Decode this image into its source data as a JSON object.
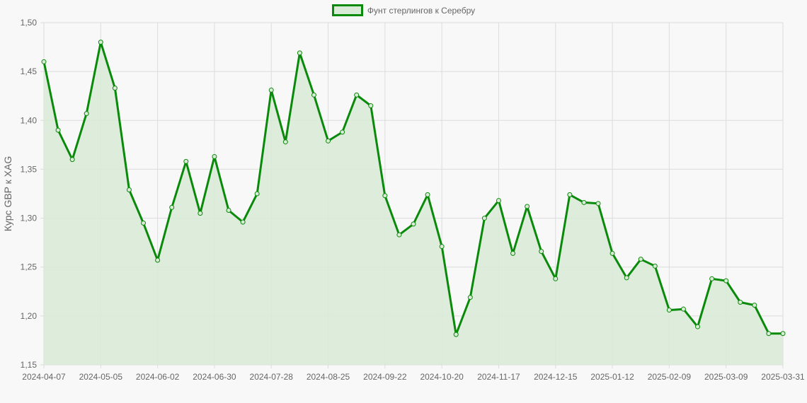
{
  "chart_data": {
    "type": "line",
    "title": "",
    "legend": {
      "position": "top",
      "entries": [
        "Фунт стерлингов к Серебру"
      ]
    },
    "xlabel": "",
    "ylabel": "Курс GBP к XAG",
    "ylim": [
      1.15,
      1.5
    ],
    "yticks": [
      "1,15",
      "1,20",
      "1,25",
      "1,30",
      "1,35",
      "1,40",
      "1,45",
      "1,50"
    ],
    "grid": true,
    "xtick_labels": [
      "2024-04-07",
      "2024-05-05",
      "2024-06-02",
      "2024-06-30",
      "2024-07-28",
      "2024-08-25",
      "2024-09-22",
      "2024-10-20",
      "2024-11-17",
      "2024-12-15",
      "2025-01-12",
      "2025-02-09",
      "2025-03-09",
      "2025-03-31"
    ],
    "x": [
      "2024-04-07",
      "2024-04-14",
      "2024-04-21",
      "2024-04-28",
      "2024-05-05",
      "2024-05-12",
      "2024-05-19",
      "2024-05-26",
      "2024-06-02",
      "2024-06-09",
      "2024-06-16",
      "2024-06-23",
      "2024-06-30",
      "2024-07-07",
      "2024-07-14",
      "2024-07-21",
      "2024-07-28",
      "2024-08-04",
      "2024-08-11",
      "2024-08-18",
      "2024-08-25",
      "2024-09-01",
      "2024-09-08",
      "2024-09-15",
      "2024-09-22",
      "2024-09-29",
      "2024-10-06",
      "2024-10-13",
      "2024-10-20",
      "2024-10-27",
      "2024-11-03",
      "2024-11-10",
      "2024-11-17",
      "2024-11-24",
      "2024-12-01",
      "2024-12-08",
      "2024-12-15",
      "2024-12-22",
      "2024-12-29",
      "2025-01-05",
      "2025-01-12",
      "2025-01-19",
      "2025-01-26",
      "2025-02-02",
      "2025-02-09",
      "2025-02-16",
      "2025-02-23",
      "2025-03-02",
      "2025-03-09",
      "2025-03-16",
      "2025-03-23",
      "2025-03-30",
      "2025-03-31"
    ],
    "series": [
      {
        "name": "Фунт стерлингов к Серебру",
        "color": "#0a8a0a",
        "fill": "#d9ead7",
        "values": [
          1.46,
          1.39,
          1.36,
          1.407,
          1.48,
          1.433,
          1.329,
          1.295,
          1.257,
          1.311,
          1.358,
          1.305,
          1.363,
          1.308,
          1.296,
          1.325,
          1.431,
          1.378,
          1.469,
          1.426,
          1.379,
          1.388,
          1.426,
          1.415,
          1.323,
          1.283,
          1.294,
          1.324,
          1.271,
          1.181,
          1.219,
          1.3,
          1.318,
          1.264,
          1.312,
          1.266,
          1.238,
          1.324,
          1.316,
          1.315,
          1.264,
          1.239,
          1.258,
          1.251,
          1.206,
          1.207,
          1.189,
          1.238,
          1.236,
          1.214,
          1.211,
          1.182,
          1.182
        ]
      }
    ]
  },
  "colors": {
    "line": "#0a8a0a",
    "fill": "#d9ead7",
    "grid": "#dcdcdc",
    "text": "#666666",
    "background": "#f8f8f8"
  }
}
